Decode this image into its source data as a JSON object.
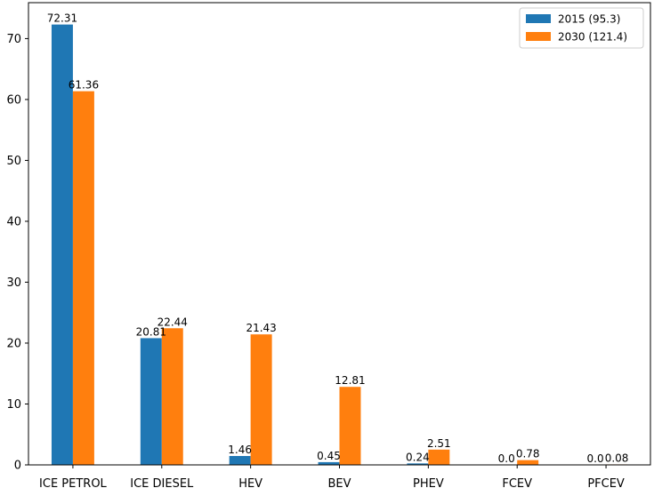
{
  "chart_data": {
    "type": "bar",
    "categories": [
      "ICE PETROL",
      "ICE DIESEL",
      "HEV",
      "BEV",
      "PHEV",
      "FCEV",
      "PFCEV"
    ],
    "series": [
      {
        "name": "2015 (95.3)",
        "color": "#1f77b4",
        "values": [
          72.31,
          20.81,
          1.46,
          0.45,
          0.24,
          0.0,
          0.0
        ],
        "labels": [
          "72.31",
          "20.81",
          "1.46",
          "0.45",
          "0.24",
          "0.0",
          "0.0"
        ]
      },
      {
        "name": "2030 (121.4)",
        "color": "#ff7f0e",
        "values": [
          61.36,
          22.44,
          21.43,
          12.81,
          2.51,
          0.78,
          0.08
        ],
        "labels": [
          "61.36",
          "22.44",
          "21.43",
          "12.81",
          "2.51",
          "0.78",
          "0.08"
        ]
      }
    ],
    "title": "",
    "xlabel": "",
    "ylabel": "",
    "ylim": [
      0,
      75.9
    ],
    "yticks": [
      0,
      10,
      20,
      30,
      40,
      50,
      60,
      70
    ],
    "grid": false,
    "legend": "top-right"
  }
}
